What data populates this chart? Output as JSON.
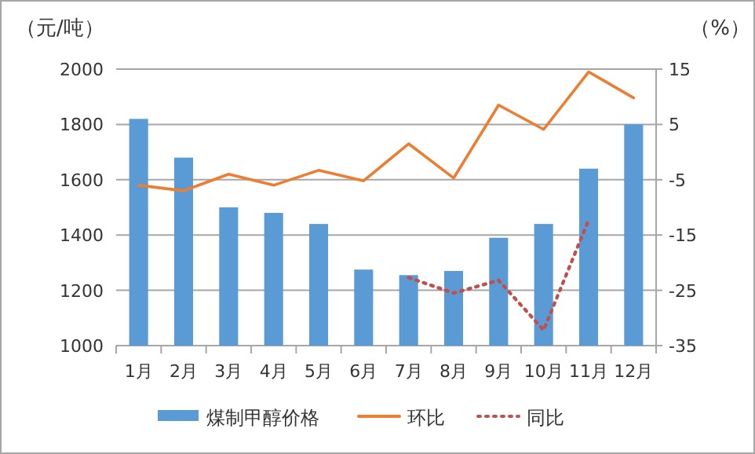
{
  "chart_data": {
    "type": "bar",
    "ylabel": "（元/吨）",
    "y2label": "（%）",
    "categories": [
      "1月",
      "2月",
      "3月",
      "4月",
      "5月",
      "6月",
      "7月",
      "8月",
      "9月",
      "10月",
      "11月",
      "12月"
    ],
    "series": [
      {
        "name": "煤制甲醇价格",
        "color": "#5b9bd5",
        "values": [
          1820,
          1680,
          1500,
          1480,
          1440,
          1275,
          1255,
          1270,
          1390,
          1440,
          1640,
          1800
        ]
      },
      {
        "name": "环比",
        "type": "line",
        "axis": "y2",
        "color": "#ed7d31",
        "line_style": "solid",
        "values": [
          -6,
          -7,
          -4,
          -6,
          -3.3,
          -5.2,
          1.5,
          -4.7,
          8.5,
          4.1,
          14.5,
          9.8
        ]
      },
      {
        "name": "同比",
        "type": "line",
        "axis": "y2",
        "color": "#c0504d",
        "line_style": "dotted",
        "values": [
          null,
          null,
          null,
          null,
          null,
          null,
          -22.7,
          -25.5,
          -23.2,
          -32.2,
          -12.3,
          null
        ]
      }
    ],
    "ylim": [
      1000,
      2000
    ],
    "yticks": [
      1000,
      1200,
      1400,
      1600,
      1800,
      2000
    ],
    "y2lim": [
      -35,
      15
    ],
    "y2ticks": [
      -35,
      -25,
      -15,
      -5,
      5,
      15
    ],
    "grid": "y",
    "legend": "bottom"
  }
}
